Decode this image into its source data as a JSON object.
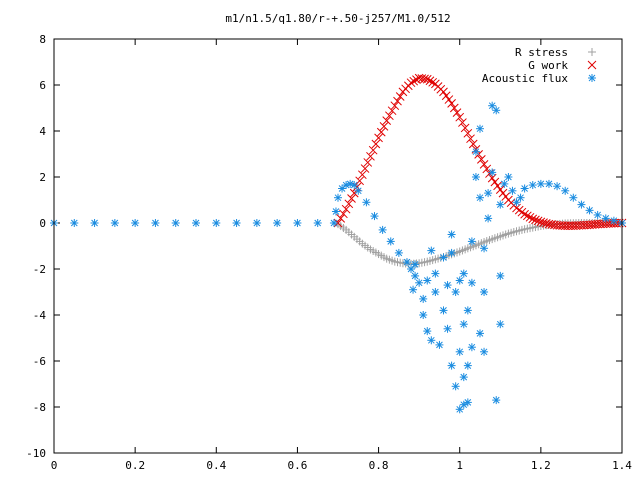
{
  "chart_data": {
    "type": "scatter",
    "title": "m1/n1.5/q1.80/r-+.50-j257/M1.0/512",
    "xlabel": "",
    "ylabel": "",
    "xlim": [
      0,
      1.4
    ],
    "ylim": [
      -10,
      8
    ],
    "x_ticks": [
      "0",
      "0.2",
      "0.4",
      "0.6",
      "0.8",
      "1",
      "1.2",
      "1.4"
    ],
    "y_ticks": [
      "-10",
      "-8",
      "-6",
      "-4",
      "-2",
      "0",
      "2",
      "4",
      "6",
      "8"
    ],
    "grid": false,
    "legend_position": "top-right",
    "series": [
      {
        "name": "R stress",
        "marker": "plus",
        "color": "#a0a0a0",
        "points": [
          [
            0.7,
            -0.05
          ],
          [
            0.72,
            -0.3
          ],
          [
            0.74,
            -0.6
          ],
          [
            0.76,
            -0.9
          ],
          [
            0.78,
            -1.15
          ],
          [
            0.8,
            -1.35
          ],
          [
            0.82,
            -1.55
          ],
          [
            0.84,
            -1.68
          ],
          [
            0.86,
            -1.75
          ],
          [
            0.88,
            -1.78
          ],
          [
            0.9,
            -1.75
          ],
          [
            0.92,
            -1.68
          ],
          [
            0.94,
            -1.58
          ],
          [
            0.96,
            -1.48
          ],
          [
            0.98,
            -1.36
          ],
          [
            1.0,
            -1.24
          ],
          [
            1.02,
            -1.1
          ],
          [
            1.04,
            -0.97
          ],
          [
            1.06,
            -0.83
          ],
          [
            1.08,
            -0.7
          ],
          [
            1.1,
            -0.58
          ],
          [
            1.12,
            -0.46
          ],
          [
            1.14,
            -0.36
          ],
          [
            1.16,
            -0.27
          ],
          [
            1.18,
            -0.2
          ],
          [
            1.2,
            -0.13
          ],
          [
            1.22,
            -0.08
          ],
          [
            1.24,
            -0.05
          ],
          [
            1.26,
            -0.02
          ],
          [
            1.28,
            -0.01
          ],
          [
            1.3,
            0.0
          ],
          [
            1.32,
            0.0
          ],
          [
            1.34,
            0.0
          ],
          [
            1.36,
            0.0
          ],
          [
            1.38,
            0.0
          ],
          [
            1.4,
            0.0
          ]
        ]
      },
      {
        "name": "G work",
        "marker": "cross",
        "color": "#e00000",
        "points": [
          [
            0.7,
            0.0
          ],
          [
            0.72,
            0.6
          ],
          [
            0.74,
            1.3
          ],
          [
            0.76,
            2.1
          ],
          [
            0.78,
            2.9
          ],
          [
            0.8,
            3.7
          ],
          [
            0.82,
            4.45
          ],
          [
            0.84,
            5.1
          ],
          [
            0.86,
            5.7
          ],
          [
            0.88,
            6.1
          ],
          [
            0.9,
            6.3
          ],
          [
            0.92,
            6.25
          ],
          [
            0.94,
            6.05
          ],
          [
            0.96,
            5.7
          ],
          [
            0.98,
            5.2
          ],
          [
            1.0,
            4.6
          ],
          [
            1.02,
            3.9
          ],
          [
            1.04,
            3.2
          ],
          [
            1.06,
            2.55
          ],
          [
            1.08,
            1.95
          ],
          [
            1.1,
            1.45
          ],
          [
            1.12,
            1.0
          ],
          [
            1.14,
            0.65
          ],
          [
            1.16,
            0.38
          ],
          [
            1.18,
            0.18
          ],
          [
            1.2,
            0.05
          ],
          [
            1.22,
            -0.05
          ],
          [
            1.24,
            -0.1
          ],
          [
            1.26,
            -0.12
          ],
          [
            1.28,
            -0.12
          ],
          [
            1.3,
            -0.1
          ],
          [
            1.32,
            -0.08
          ],
          [
            1.34,
            -0.05
          ],
          [
            1.36,
            -0.03
          ],
          [
            1.38,
            -0.01
          ],
          [
            1.4,
            0.0
          ]
        ]
      },
      {
        "name": "Acoustic flux",
        "marker": "star",
        "color": "#1a8ce0",
        "points": [
          [
            0.0,
            0.0
          ],
          [
            0.05,
            0.0
          ],
          [
            0.1,
            0.0
          ],
          [
            0.15,
            0.0
          ],
          [
            0.2,
            0.0
          ],
          [
            0.25,
            0.0
          ],
          [
            0.3,
            0.0
          ],
          [
            0.35,
            0.0
          ],
          [
            0.4,
            0.0
          ],
          [
            0.45,
            0.0
          ],
          [
            0.5,
            0.0
          ],
          [
            0.55,
            0.0
          ],
          [
            0.6,
            0.0
          ],
          [
            0.65,
            0.0
          ],
          [
            0.69,
            0.0
          ],
          [
            0.695,
            0.5
          ],
          [
            0.7,
            1.1
          ],
          [
            0.71,
            1.5
          ],
          [
            0.72,
            1.65
          ],
          [
            0.73,
            1.7
          ],
          [
            0.74,
            1.65
          ],
          [
            0.75,
            1.4
          ],
          [
            0.77,
            0.9
          ],
          [
            0.79,
            0.3
          ],
          [
            0.81,
            -0.3
          ],
          [
            0.83,
            -0.8
          ],
          [
            0.85,
            -1.3
          ],
          [
            0.87,
            -1.7
          ],
          [
            0.88,
            -2.0
          ],
          [
            0.89,
            -2.3
          ],
          [
            0.885,
            -2.9
          ],
          [
            0.89,
            -1.8
          ],
          [
            0.9,
            -2.6
          ],
          [
            0.91,
            -4.0
          ],
          [
            0.92,
            -4.7
          ],
          [
            0.93,
            -5.1
          ],
          [
            0.91,
            -3.3
          ],
          [
            0.92,
            -2.5
          ],
          [
            0.93,
            -1.2
          ],
          [
            0.94,
            -3.0
          ],
          [
            0.95,
            -5.3
          ],
          [
            0.94,
            -2.2
          ],
          [
            0.96,
            -1.5
          ],
          [
            0.96,
            -3.8
          ],
          [
            0.97,
            -4.6
          ],
          [
            0.97,
            -2.7
          ],
          [
            0.98,
            -1.3
          ],
          [
            0.98,
            -0.5
          ],
          [
            0.98,
            -6.2
          ],
          [
            0.99,
            -7.1
          ],
          [
            0.99,
            -3.0
          ],
          [
            1.0,
            -2.5
          ],
          [
            1.0,
            -5.6
          ],
          [
            1.0,
            -8.1
          ],
          [
            1.01,
            -7.9
          ],
          [
            1.01,
            -6.7
          ],
          [
            1.01,
            -4.4
          ],
          [
            1.01,
            -2.2
          ],
          [
            1.02,
            -3.8
          ],
          [
            1.02,
            -6.2
          ],
          [
            1.02,
            -7.8
          ],
          [
            1.03,
            -5.4
          ],
          [
            1.03,
            -2.6
          ],
          [
            1.03,
            -0.8
          ],
          [
            1.04,
            2.0
          ],
          [
            1.04,
            3.1
          ],
          [
            1.05,
            4.1
          ],
          [
            1.05,
            1.1
          ],
          [
            1.05,
            -4.8
          ],
          [
            1.06,
            -5.6
          ],
          [
            1.06,
            -3.0
          ],
          [
            1.06,
            -1.1
          ],
          [
            1.07,
            0.2
          ],
          [
            1.07,
            1.3
          ],
          [
            1.08,
            2.2
          ],
          [
            1.08,
            5.1
          ],
          [
            1.09,
            4.9
          ],
          [
            1.09,
            -7.7
          ],
          [
            1.1,
            -4.4
          ],
          [
            1.1,
            -2.3
          ],
          [
            1.1,
            0.8
          ],
          [
            1.11,
            1.7
          ],
          [
            1.12,
            2.0
          ],
          [
            1.13,
            1.4
          ],
          [
            1.14,
            0.9
          ],
          [
            1.15,
            1.1
          ],
          [
            1.16,
            1.5
          ],
          [
            1.18,
            1.65
          ],
          [
            1.2,
            1.7
          ],
          [
            1.22,
            1.7
          ],
          [
            1.24,
            1.6
          ],
          [
            1.26,
            1.4
          ],
          [
            1.28,
            1.1
          ],
          [
            1.3,
            0.8
          ],
          [
            1.32,
            0.55
          ],
          [
            1.34,
            0.35
          ],
          [
            1.36,
            0.2
          ],
          [
            1.38,
            0.1
          ],
          [
            1.4,
            0.0
          ]
        ]
      }
    ]
  }
}
